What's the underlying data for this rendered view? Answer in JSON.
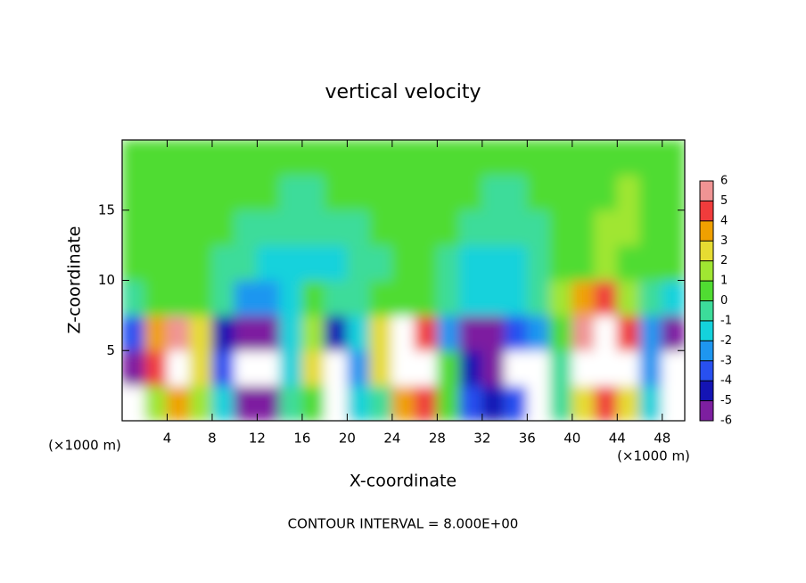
{
  "chart_data": {
    "type": "heatmap",
    "title": "vertical velocity",
    "x_label": "X-coordinate",
    "y_label": "Z-coordinate",
    "x_unit_labels": [
      "(×1000 m)",
      "(×1000 m)"
    ],
    "footnote": "CONTOUR INTERVAL = 8.000E+00",
    "xlim": [
      0,
      50
    ],
    "xticks": [
      4,
      8,
      12,
      16,
      20,
      24,
      28,
      32,
      36,
      40,
      44,
      48
    ],
    "ylim": [
      0,
      20
    ],
    "yticks": [
      5,
      10,
      15
    ],
    "x": [
      1,
      3,
      5,
      7,
      9,
      11,
      13,
      15,
      17,
      19,
      21,
      23,
      25,
      27,
      29,
      31,
      33,
      35,
      37,
      39,
      41,
      43,
      45,
      47,
      49
    ],
    "y": [
      1.25,
      3.75,
      6.25,
      8.75,
      11.25,
      13.75,
      16.25,
      18.75
    ],
    "values": [
      [
        -7,
        2,
        4,
        2,
        -1,
        -6,
        -6,
        0,
        1,
        -7,
        -1,
        0,
        4,
        5,
        0.5,
        -3,
        -4,
        -3,
        -7,
        0,
        3,
        5,
        3,
        -1,
        -8
      ],
      [
        -6,
        5,
        9,
        3,
        -3,
        -8,
        -7,
        -1,
        3,
        -7,
        -2,
        3,
        9,
        8,
        1,
        -4,
        -5,
        -7,
        -7,
        0,
        7,
        9,
        8,
        -2,
        -8
      ],
      [
        -3,
        4,
        6,
        3,
        -4,
        -6,
        -6,
        -1,
        2,
        -4,
        -1,
        3,
        7,
        5,
        -2,
        -5,
        -5,
        -3,
        -2,
        1,
        6,
        8,
        5,
        -2,
        -5
      ],
      [
        0,
        1,
        1,
        0.5,
        0,
        -2,
        -2,
        -1,
        1,
        0,
        0,
        0.5,
        1,
        1,
        0,
        -1,
        -1.5,
        -1,
        0,
        2,
        4,
        5,
        2,
        0,
        -1
      ],
      [
        0.5,
        0.5,
        0.5,
        0.3,
        0,
        -0.5,
        -1,
        -1.5,
        -1,
        -1,
        -0.5,
        0,
        0.5,
        0.5,
        0,
        -1,
        -1.5,
        -1.5,
        -0.5,
        0.5,
        1,
        1.5,
        1,
        0.5,
        0.5
      ],
      [
        0.5,
        0.5,
        0.5,
        0.5,
        0.3,
        0,
        -0.3,
        -0.8,
        -0.5,
        -0.3,
        0,
        0.3,
        0.5,
        0.5,
        0.3,
        0,
        -0.5,
        -0.5,
        0,
        0.5,
        1,
        1.5,
        1.5,
        1,
        0.5
      ],
      [
        0.5,
        0.5,
        0.5,
        0.5,
        0.5,
        0.3,
        0.3,
        0,
        0,
        0.3,
        0.5,
        0.5,
        0.5,
        0.5,
        0.5,
        0.3,
        0,
        0,
        0.3,
        0.5,
        0.5,
        1,
        1.5,
        1,
        0.5
      ],
      [
        0.5,
        0.5,
        0.5,
        0.5,
        0.5,
        0.5,
        0.5,
        0.3,
        0.3,
        0.5,
        0.5,
        0.5,
        0.5,
        0.5,
        0.5,
        0.5,
        0.3,
        0.3,
        0.5,
        0.5,
        0.5,
        0.8,
        1,
        0.8,
        0.5
      ]
    ],
    "colorbar_ticks": [
      -6,
      -5,
      -4,
      -3,
      -2,
      -1,
      0,
      1,
      2,
      3,
      4,
      5,
      6
    ],
    "colorbar_colors": [
      "#7d1fa0",
      "#1414b4",
      "#2850f0",
      "#1e96f0",
      "#14d2dc",
      "#3cdc9a",
      "#50dc32",
      "#a0e632",
      "#e6dc32",
      "#f0a000",
      "#f03c3c",
      "#f09494"
    ],
    "out_of_range_color": "#ffffff"
  }
}
